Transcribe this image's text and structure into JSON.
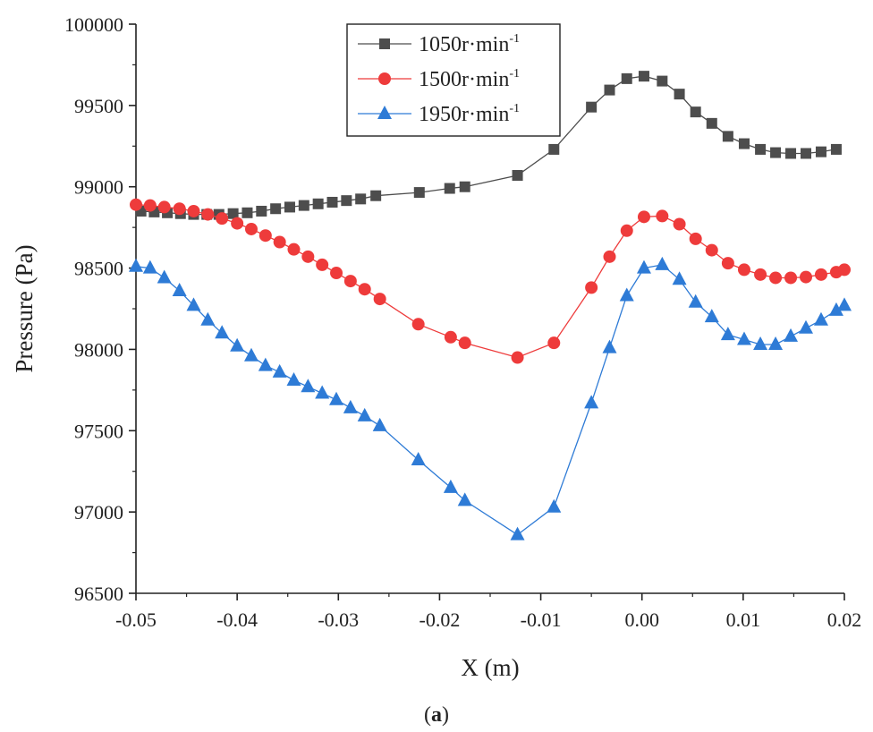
{
  "chart_data": {
    "type": "line",
    "xlabel": "X (m)",
    "ylabel": "Pressure (Pa)",
    "xlim": [
      -0.05,
      0.02
    ],
    "ylim": [
      96500,
      100000
    ],
    "xticks": [
      "-0.05",
      "-0.04",
      "-0.03",
      "-0.02",
      "-0.01",
      "0.00",
      "0.01",
      "0.02"
    ],
    "yticks": [
      "96500",
      "97000",
      "97500",
      "98000",
      "98500",
      "99000",
      "99500",
      "100000"
    ],
    "grid": false,
    "legend_position": "top-center",
    "caption": "(a)",
    "series": [
      {
        "name": "1050r·min",
        "unit_sup": "-1",
        "color": "#4d4d4d",
        "marker": "square",
        "x": [
          -0.0495,
          -0.0482,
          -0.0469,
          -0.0456,
          -0.0443,
          -0.043,
          -0.0418,
          -0.0404,
          -0.039,
          -0.0376,
          -0.0362,
          -0.0348,
          -0.0334,
          -0.032,
          -0.0306,
          -0.0292,
          -0.0278,
          -0.0263,
          -0.022,
          -0.019,
          -0.0175,
          -0.0123,
          -0.0087,
          -0.005,
          -0.0032,
          -0.0015,
          0.0002,
          0.002,
          0.0037,
          0.0053,
          0.0069,
          0.0085,
          0.0101,
          0.0117,
          0.0132,
          0.0147,
          0.0162,
          0.0177,
          0.0192
        ],
        "y": [
          98850,
          98845,
          98840,
          98835,
          98830,
          98830,
          98830,
          98835,
          98840,
          98850,
          98865,
          98875,
          98885,
          98895,
          98905,
          98915,
          98925,
          98945,
          98965,
          98990,
          99000,
          99070,
          99230,
          99490,
          99595,
          99665,
          99680,
          99650,
          99570,
          99460,
          99390,
          99310,
          99265,
          99230,
          99210,
          99205,
          99205,
          99215,
          99230
        ]
      },
      {
        "name": "1500r·min",
        "unit_sup": "-1",
        "color": "#ee3b3b",
        "marker": "circle",
        "x": [
          -0.05,
          -0.0486,
          -0.0472,
          -0.0457,
          -0.0443,
          -0.0429,
          -0.0415,
          -0.04,
          -0.0386,
          -0.0372,
          -0.0358,
          -0.0344,
          -0.033,
          -0.0316,
          -0.0302,
          -0.0288,
          -0.0274,
          -0.0259,
          -0.0221,
          -0.0189,
          -0.0175,
          -0.0123,
          -0.0087,
          -0.005,
          -0.0032,
          -0.0015,
          0.0002,
          0.002,
          0.0037,
          0.0053,
          0.0069,
          0.0085,
          0.0101,
          0.0117,
          0.0132,
          0.0147,
          0.0162,
          0.0177,
          0.0192,
          0.02
        ],
        "y": [
          98890,
          98885,
          98875,
          98865,
          98850,
          98830,
          98805,
          98775,
          98740,
          98700,
          98660,
          98615,
          98570,
          98520,
          98470,
          98420,
          98370,
          98310,
          98155,
          98075,
          98040,
          97950,
          98040,
          98380,
          98570,
          98730,
          98815,
          98820,
          98770,
          98680,
          98610,
          98530,
          98490,
          98460,
          98440,
          98440,
          98445,
          98460,
          98475,
          98490
        ]
      },
      {
        "name": "1950r·min",
        "unit_sup": "-1",
        "color": "#2e7bd6",
        "marker": "triangle",
        "x": [
          -0.05,
          -0.0486,
          -0.0472,
          -0.0457,
          -0.0443,
          -0.0429,
          -0.0415,
          -0.04,
          -0.0386,
          -0.0372,
          -0.0358,
          -0.0344,
          -0.033,
          -0.0316,
          -0.0302,
          -0.0288,
          -0.0274,
          -0.0259,
          -0.0221,
          -0.0189,
          -0.0175,
          -0.0123,
          -0.0087,
          -0.005,
          -0.0032,
          -0.0015,
          0.0002,
          0.002,
          0.0037,
          0.0053,
          0.0069,
          0.0085,
          0.0101,
          0.0117,
          0.0132,
          0.0147,
          0.0162,
          0.0177,
          0.0192,
          0.02
        ],
        "y": [
          98510,
          98500,
          98440,
          98360,
          98270,
          98180,
          98100,
          98020,
          97960,
          97900,
          97860,
          97810,
          97770,
          97730,
          97690,
          97640,
          97590,
          97530,
          97320,
          97150,
          97070,
          96860,
          97030,
          97670,
          98010,
          98330,
          98500,
          98520,
          98430,
          98290,
          98200,
          98090,
          98060,
          98030,
          98030,
          98080,
          98130,
          98180,
          98240,
          98270
        ]
      }
    ]
  }
}
